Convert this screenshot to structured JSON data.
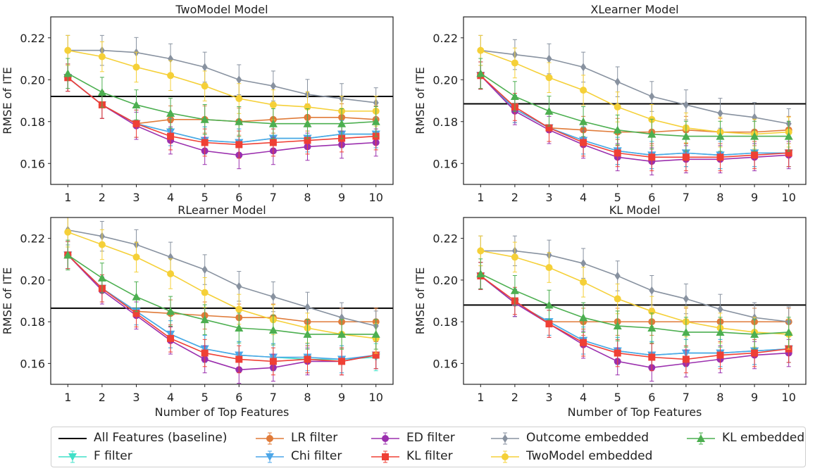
{
  "chart_data": [
    {
      "type": "line",
      "title": "TwoModel Model",
      "ylabel": "RMSE of ITE",
      "xlabel": "",
      "x": [
        1,
        2,
        3,
        4,
        5,
        6,
        7,
        8,
        9,
        10
      ],
      "ylim": [
        0.15,
        0.23
      ],
      "yticks": [
        0.16,
        0.18,
        0.2,
        0.22
      ],
      "baseline": 0.192,
      "series": [
        {
          "name": "F filter",
          "values": [
            0.201,
            0.188,
            0.179,
            0.175,
            0.171,
            0.17,
            0.172,
            0.172,
            0.174,
            0.174
          ]
        },
        {
          "name": "LR filter",
          "values": [
            0.201,
            0.188,
            0.179,
            0.181,
            0.181,
            0.18,
            0.181,
            0.182,
            0.182,
            0.181
          ]
        },
        {
          "name": "Chi filter",
          "values": [
            0.201,
            0.188,
            0.179,
            0.175,
            0.171,
            0.17,
            0.172,
            0.172,
            0.174,
            0.174
          ]
        },
        {
          "name": "ED filter",
          "values": [
            0.201,
            0.188,
            0.178,
            0.171,
            0.166,
            0.164,
            0.166,
            0.168,
            0.169,
            0.17
          ]
        },
        {
          "name": "KL filter",
          "values": [
            0.201,
            0.188,
            0.179,
            0.173,
            0.17,
            0.169,
            0.17,
            0.171,
            0.172,
            0.173
          ]
        },
        {
          "name": "Outcome embedded",
          "values": [
            0.214,
            0.214,
            0.213,
            0.21,
            0.206,
            0.2,
            0.197,
            0.193,
            0.191,
            0.189
          ]
        },
        {
          "name": "TwoModel embedded",
          "values": [
            0.214,
            0.211,
            0.206,
            0.202,
            0.197,
            0.191,
            0.188,
            0.187,
            0.185,
            0.185
          ]
        },
        {
          "name": "KL embedded",
          "values": [
            0.203,
            0.194,
            0.188,
            0.184,
            0.181,
            0.18,
            0.179,
            0.179,
            0.179,
            0.18
          ]
        }
      ]
    },
    {
      "type": "line",
      "title": "XLearner Model",
      "ylabel": "RMSE of ITE",
      "xlabel": "",
      "x": [
        1,
        2,
        3,
        4,
        5,
        6,
        7,
        8,
        9,
        10
      ],
      "ylim": [
        0.15,
        0.23
      ],
      "yticks": [
        0.16,
        0.18,
        0.2,
        0.22
      ],
      "baseline": 0.1885,
      "series": [
        {
          "name": "F filter",
          "values": [
            0.202,
            0.186,
            0.177,
            0.171,
            0.166,
            0.164,
            0.165,
            0.164,
            0.165,
            0.165
          ]
        },
        {
          "name": "LR filter",
          "values": [
            0.202,
            0.186,
            0.177,
            0.176,
            0.175,
            0.175,
            0.176,
            0.175,
            0.175,
            0.176
          ]
        },
        {
          "name": "Chi filter",
          "values": [
            0.202,
            0.186,
            0.177,
            0.171,
            0.166,
            0.164,
            0.165,
            0.164,
            0.165,
            0.165
          ]
        },
        {
          "name": "ED filter",
          "values": [
            0.202,
            0.185,
            0.176,
            0.169,
            0.163,
            0.161,
            0.162,
            0.162,
            0.163,
            0.164
          ]
        },
        {
          "name": "KL filter",
          "values": [
            0.202,
            0.187,
            0.177,
            0.17,
            0.165,
            0.163,
            0.163,
            0.163,
            0.164,
            0.165
          ]
        },
        {
          "name": "Outcome embedded",
          "values": [
            0.214,
            0.212,
            0.21,
            0.206,
            0.199,
            0.192,
            0.188,
            0.184,
            0.182,
            0.179
          ]
        },
        {
          "name": "TwoModel embedded",
          "values": [
            0.214,
            0.208,
            0.201,
            0.195,
            0.187,
            0.181,
            0.177,
            0.175,
            0.174,
            0.175
          ]
        },
        {
          "name": "KL embedded",
          "values": [
            0.203,
            0.192,
            0.185,
            0.18,
            0.176,
            0.174,
            0.173,
            0.173,
            0.173,
            0.173
          ]
        }
      ]
    },
    {
      "type": "line",
      "title": "RLearner Model",
      "ylabel": "RMSE of ITE",
      "xlabel": "Number of Top Features",
      "x": [
        1,
        2,
        3,
        4,
        5,
        6,
        7,
        8,
        9,
        10
      ],
      "ylim": [
        0.15,
        0.23
      ],
      "yticks": [
        0.16,
        0.18,
        0.2,
        0.22
      ],
      "baseline": 0.1865,
      "series": [
        {
          "name": "F filter",
          "values": [
            0.212,
            0.196,
            0.185,
            0.174,
            0.167,
            0.164,
            0.163,
            0.162,
            0.162,
            0.163
          ]
        },
        {
          "name": "LR filter",
          "values": [
            0.212,
            0.196,
            0.185,
            0.184,
            0.183,
            0.182,
            0.182,
            0.18,
            0.18,
            0.18
          ]
        },
        {
          "name": "Chi filter",
          "values": [
            0.212,
            0.196,
            0.185,
            0.174,
            0.167,
            0.164,
            0.163,
            0.163,
            0.162,
            0.164
          ]
        },
        {
          "name": "ED filter",
          "values": [
            0.212,
            0.195,
            0.183,
            0.171,
            0.162,
            0.157,
            0.158,
            0.161,
            0.161,
            0.164
          ]
        },
        {
          "name": "KL filter",
          "values": [
            0.212,
            0.196,
            0.184,
            0.172,
            0.165,
            0.162,
            0.161,
            0.162,
            0.161,
            0.164
          ]
        },
        {
          "name": "Outcome embedded",
          "values": [
            0.224,
            0.221,
            0.217,
            0.211,
            0.205,
            0.197,
            0.192,
            0.187,
            0.182,
            0.178
          ]
        },
        {
          "name": "TwoModel embedded",
          "values": [
            0.223,
            0.217,
            0.211,
            0.203,
            0.194,
            0.186,
            0.181,
            0.177,
            0.174,
            0.172
          ]
        },
        {
          "name": "KL embedded",
          "values": [
            0.212,
            0.201,
            0.192,
            0.185,
            0.181,
            0.177,
            0.176,
            0.174,
            0.174,
            0.174
          ]
        }
      ]
    },
    {
      "type": "line",
      "title": "KL Model",
      "ylabel": "RMSE of ITE",
      "xlabel": "Number of Top Features",
      "x": [
        1,
        2,
        3,
        4,
        5,
        6,
        7,
        8,
        9,
        10
      ],
      "ylim": [
        0.15,
        0.23
      ],
      "yticks": [
        0.16,
        0.18,
        0.2,
        0.22
      ],
      "baseline": 0.188,
      "series": [
        {
          "name": "F filter",
          "values": [
            0.202,
            0.189,
            0.18,
            0.171,
            0.166,
            0.164,
            0.165,
            0.165,
            0.166,
            0.167
          ]
        },
        {
          "name": "LR filter",
          "values": [
            0.202,
            0.189,
            0.18,
            0.18,
            0.18,
            0.18,
            0.18,
            0.18,
            0.18,
            0.18
          ]
        },
        {
          "name": "Chi filter",
          "values": [
            0.202,
            0.189,
            0.18,
            0.171,
            0.166,
            0.164,
            0.165,
            0.165,
            0.166,
            0.167
          ]
        },
        {
          "name": "ED filter",
          "values": [
            0.202,
            0.189,
            0.179,
            0.169,
            0.161,
            0.158,
            0.16,
            0.162,
            0.164,
            0.165
          ]
        },
        {
          "name": "KL filter",
          "values": [
            0.202,
            0.19,
            0.179,
            0.17,
            0.165,
            0.163,
            0.162,
            0.164,
            0.165,
            0.167
          ]
        },
        {
          "name": "Outcome embedded",
          "values": [
            0.214,
            0.214,
            0.212,
            0.208,
            0.202,
            0.195,
            0.191,
            0.186,
            0.182,
            0.18
          ]
        },
        {
          "name": "TwoModel embedded",
          "values": [
            0.214,
            0.211,
            0.206,
            0.199,
            0.191,
            0.185,
            0.18,
            0.177,
            0.175,
            0.174
          ]
        },
        {
          "name": "KL embedded",
          "values": [
            0.203,
            0.195,
            0.188,
            0.182,
            0.178,
            0.177,
            0.175,
            0.175,
            0.174,
            0.175
          ]
        }
      ]
    }
  ],
  "legend": {
    "baseline": {
      "label": "All Features (baseline)",
      "color": "#000000"
    },
    "series": [
      {
        "name": "F filter",
        "color": "#40e0c8",
        "marker": "tri-down"
      },
      {
        "name": "LR filter",
        "color": "#e07b39",
        "marker": "circle"
      },
      {
        "name": "Chi filter",
        "color": "#4ca6e8",
        "marker": "tri-down"
      },
      {
        "name": "ED filter",
        "color": "#9b2fae",
        "marker": "circle"
      },
      {
        "name": "KL filter",
        "color": "#ef4035",
        "marker": "square"
      },
      {
        "name": "Outcome embedded",
        "color": "#8892a0",
        "marker": "diamond"
      },
      {
        "name": "TwoModel embedded",
        "color": "#f5d038",
        "marker": "circle"
      },
      {
        "name": "KL embedded",
        "color": "#4caf50",
        "marker": "tri-up"
      }
    ]
  }
}
